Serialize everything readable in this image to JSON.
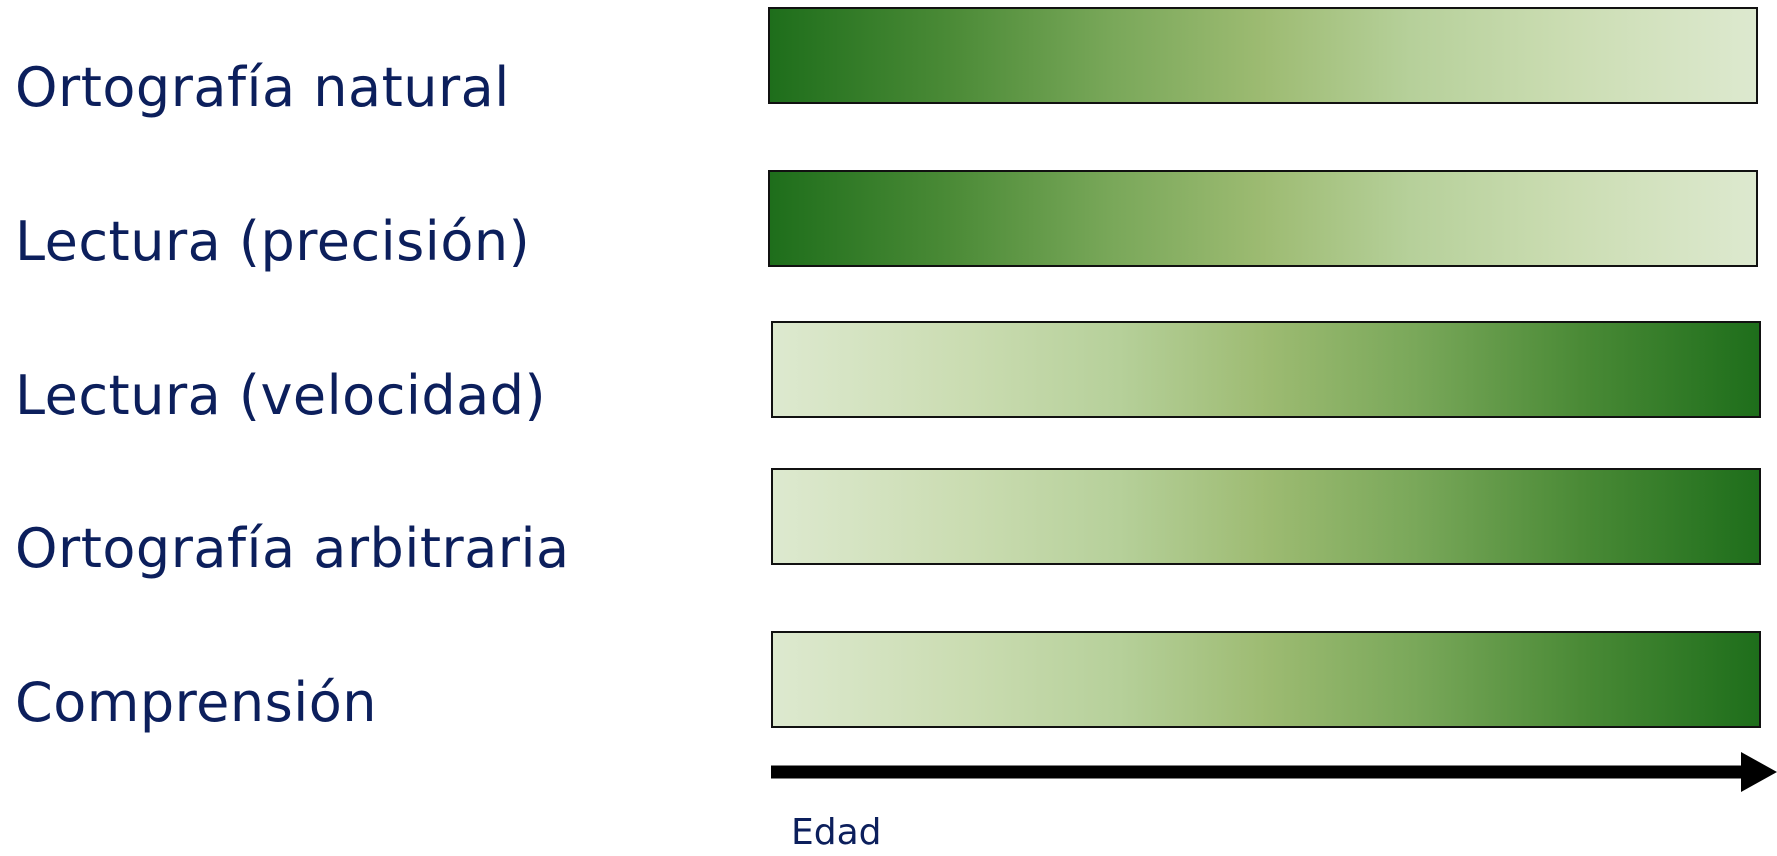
{
  "rows": [
    {
      "label": "Ortografía natural",
      "direction": "decreasing"
    },
    {
      "label": "Lectura (precisión)",
      "direction": "decreasing"
    },
    {
      "label": "Lectura (velocidad)",
      "direction": "increasing"
    },
    {
      "label": "Ortografía arbitraria",
      "direction": "increasing"
    },
    {
      "label": "Comprensión",
      "direction": "increasing"
    }
  ],
  "axis": {
    "label": "Edad"
  },
  "colors": {
    "label_text": "#0c1f5c",
    "gradient_dark": "#1e6e1b",
    "gradient_light": "#dde9cf",
    "arrow": "#000000"
  }
}
